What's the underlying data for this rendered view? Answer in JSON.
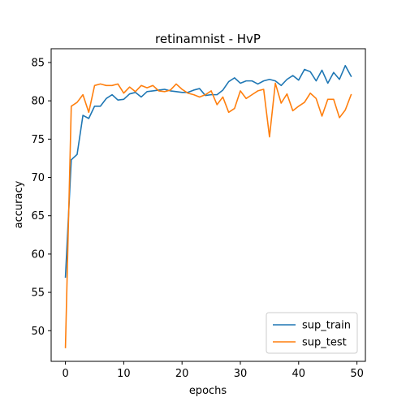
{
  "chart_data": {
    "type": "line",
    "title": "retinamnist - HvP",
    "xlabel": "epochs",
    "ylabel": "accuracy",
    "xlim": [
      -2.45,
      51.45
    ],
    "ylim": [
      46.0,
      86.8
    ],
    "xticks": [
      0,
      10,
      20,
      30,
      40,
      50
    ],
    "yticks": [
      50,
      55,
      60,
      65,
      70,
      75,
      80,
      85
    ],
    "grid": false,
    "legend": "lower-right",
    "x": [
      0,
      1,
      2,
      3,
      4,
      5,
      6,
      7,
      8,
      9,
      10,
      11,
      12,
      13,
      14,
      15,
      16,
      17,
      18,
      19,
      20,
      21,
      22,
      23,
      24,
      25,
      26,
      27,
      28,
      29,
      30,
      31,
      32,
      33,
      34,
      35,
      36,
      37,
      38,
      39,
      40,
      41,
      42,
      43,
      44,
      45,
      46,
      47,
      48,
      49
    ],
    "series": [
      {
        "name": "sup_train",
        "color": "#1f77b4",
        "values": [
          57.0,
          72.3,
          73.0,
          78.1,
          77.7,
          79.3,
          79.3,
          80.3,
          80.8,
          80.1,
          80.2,
          80.9,
          81.1,
          80.5,
          81.2,
          81.3,
          81.4,
          81.5,
          81.3,
          81.2,
          81.1,
          81.1,
          81.4,
          81.6,
          80.7,
          80.8,
          80.8,
          81.4,
          82.5,
          83.0,
          82.3,
          82.6,
          82.6,
          82.2,
          82.6,
          82.8,
          82.6,
          82.0,
          82.8,
          83.3,
          82.7,
          84.1,
          83.8,
          82.6,
          84.0,
          82.3,
          83.7,
          82.8,
          84.6,
          83.2
        ]
      },
      {
        "name": "sup_test",
        "color": "#ff7f0e",
        "values": [
          47.8,
          79.3,
          79.8,
          80.8,
          78.5,
          82.0,
          82.2,
          82.0,
          82.0,
          82.2,
          81.0,
          81.8,
          81.2,
          82.0,
          81.7,
          82.0,
          81.3,
          81.2,
          81.4,
          82.2,
          81.5,
          81.0,
          80.8,
          80.5,
          80.8,
          81.3,
          79.5,
          80.5,
          78.5,
          79.0,
          81.3,
          80.3,
          80.8,
          81.3,
          81.5,
          75.3,
          82.3,
          79.7,
          80.9,
          78.7,
          79.3,
          79.8,
          81.0,
          80.3,
          78.0,
          80.2,
          80.2,
          77.8,
          78.8,
          80.8
        ]
      }
    ]
  }
}
